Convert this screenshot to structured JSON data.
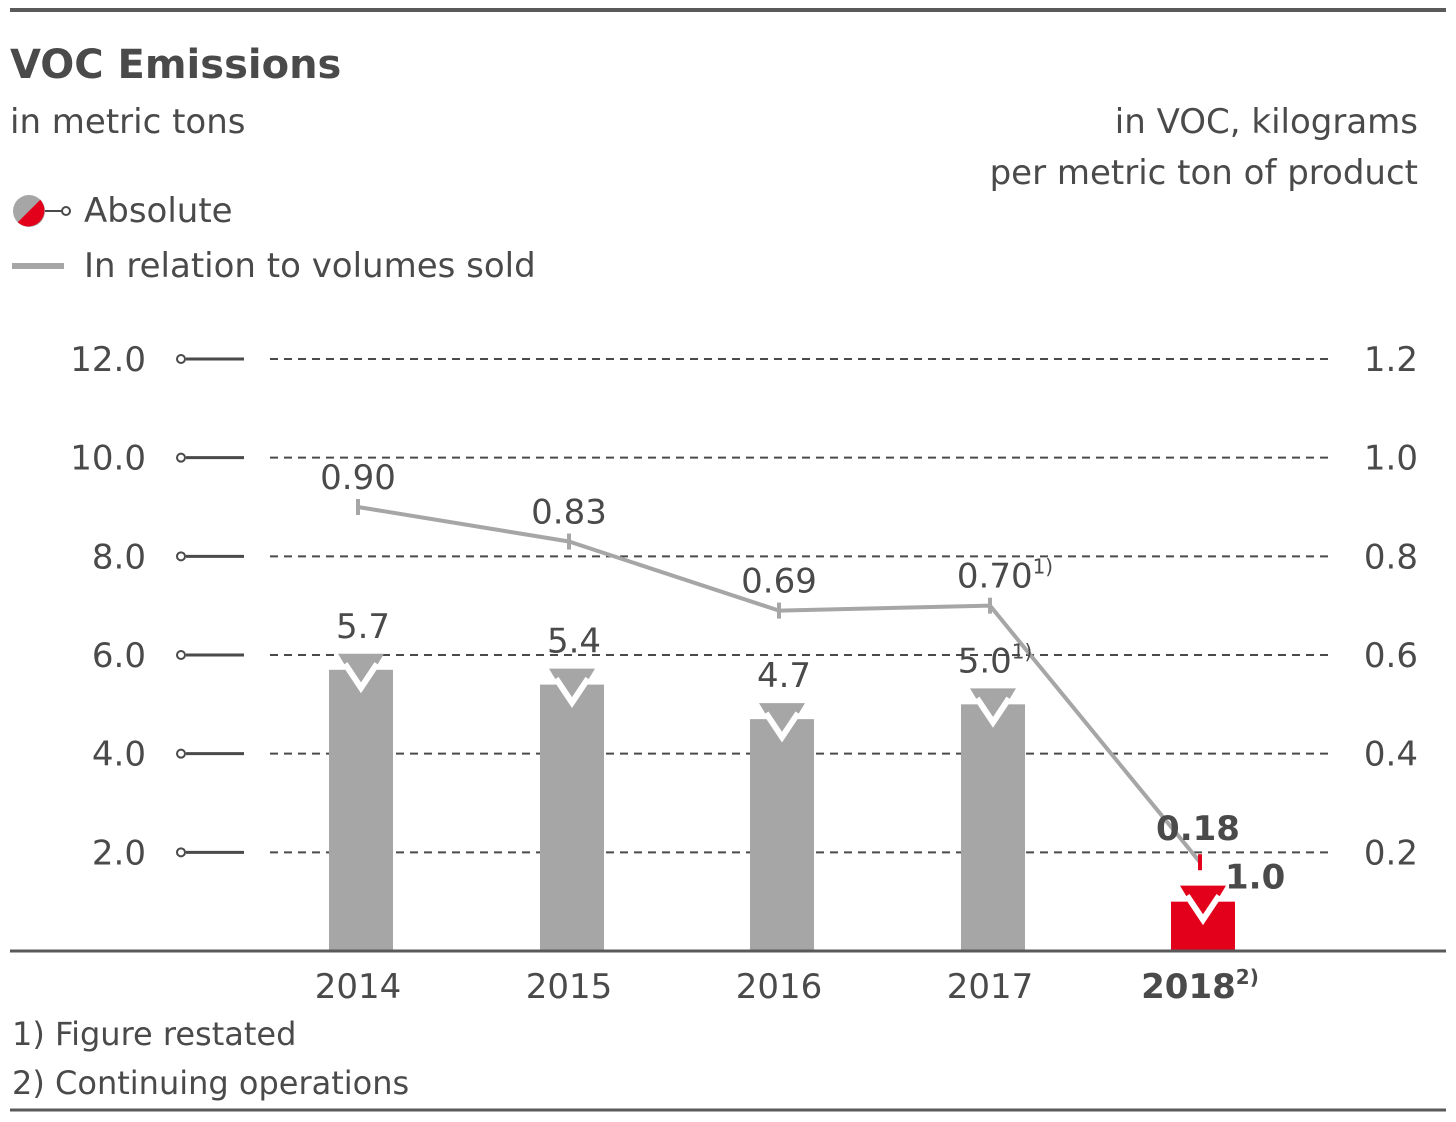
{
  "title": "VOC Emissions",
  "left_axis_label": "in metric tons",
  "right_axis_label_line1": "in VOC, kilograms",
  "right_axis_label_line2": "per metric ton of product",
  "legend": {
    "absolute": "Absolute",
    "relative": "In relation to volumes sold"
  },
  "colors": {
    "bar": "#a6a6a6",
    "highlight": "#e2001a",
    "line": "#a6a6a6",
    "text": "#4a4a4a",
    "grid": "#4a4a4a"
  },
  "chart_data": {
    "type": "bar",
    "categories": [
      "2014",
      "2015",
      "2016",
      "2017",
      "2018"
    ],
    "category_notes": [
      "",
      "",
      "",
      "",
      "2)"
    ],
    "highlight_index": 4,
    "left_axis": {
      "ticks": [
        "2.0",
        "4.0",
        "6.0",
        "8.0",
        "10.0",
        "12.0"
      ],
      "ylim": [
        0,
        12
      ]
    },
    "right_axis": {
      "ticks": [
        "0.2",
        "0.4",
        "0.6",
        "0.8",
        "1.0",
        "1.2"
      ],
      "ylim": [
        0,
        1.2
      ]
    },
    "grid": true,
    "series": [
      {
        "name": "Absolute",
        "type": "bar",
        "axis": "left",
        "values": [
          5.7,
          5.4,
          4.7,
          5.0,
          1.0
        ],
        "labels": [
          "5.7",
          "5.4",
          "4.7",
          "5.0",
          "1.0"
        ],
        "notes": [
          "",
          "",
          "",
          "1)",
          ""
        ]
      },
      {
        "name": "In relation to volumes sold",
        "type": "line",
        "axis": "right",
        "values": [
          0.9,
          0.83,
          0.69,
          0.7,
          0.18
        ],
        "labels": [
          "0.90",
          "0.83",
          "0.69",
          "0.70",
          "0.18"
        ],
        "notes": [
          "",
          "",
          "",
          "1)",
          ""
        ]
      }
    ]
  },
  "footnotes": [
    "1) Figure restated",
    "2) Continuing operations"
  ]
}
